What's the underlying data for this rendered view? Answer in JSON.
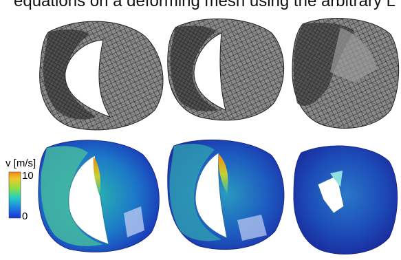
{
  "caption_fragment": "equations on a deforming mesh using the arbitrary L",
  "colorbar": {
    "label": "v [m/s]",
    "max_label": "10",
    "min_label": "0",
    "colors": [
      "#1a2fd6",
      "#1f8be0",
      "#28d1c0",
      "#8fe040",
      "#f2c82a",
      "#f08a18"
    ]
  },
  "panels": {
    "mesh_row": [
      "mesh-frame-1",
      "mesh-frame-2",
      "mesh-frame-3"
    ],
    "velocity_row": [
      "velocity-frame-1",
      "velocity-frame-2",
      "velocity-frame-3"
    ]
  }
}
